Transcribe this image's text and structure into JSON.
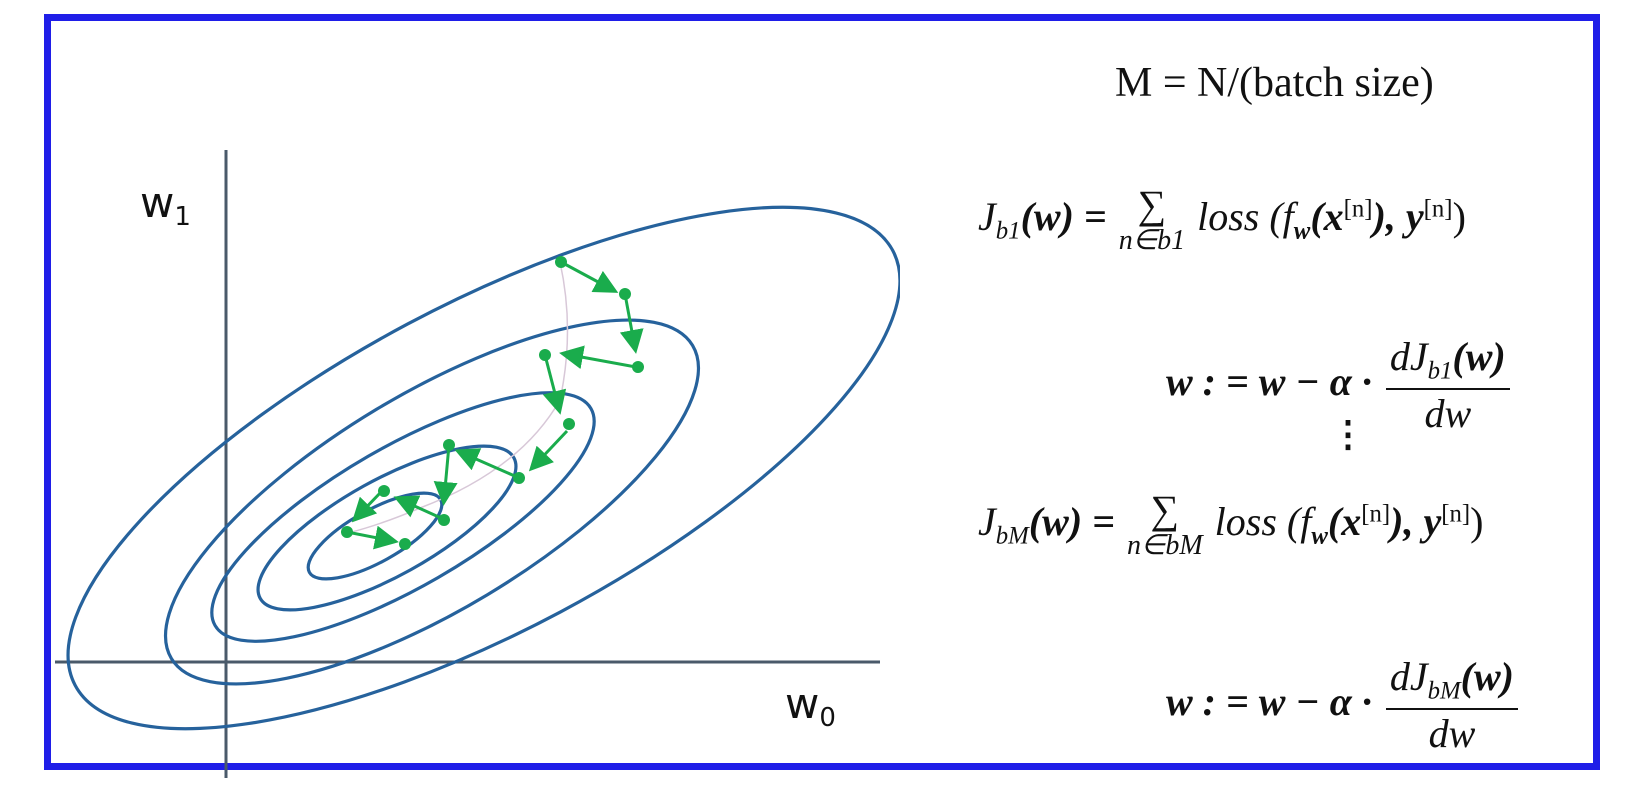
{
  "diagram": {
    "axis_x_label": "w",
    "axis_x_sub": "0",
    "axis_y_label": "w",
    "axis_y_sub": "1"
  },
  "equations": {
    "batches_count": "M = N/(batch size)",
    "batch1": {
      "lhs_J": "J",
      "lhs_sub": "b1",
      "lhs_arg": "(w) =",
      "sum_symbol": "∑",
      "sum_limit": "n∈b1",
      "rhs": "loss (f",
      "rhs_fsub": "w",
      "rhs_x": "(x",
      "rhs_xsup": "[n]",
      "rhs_y": "), y",
      "rhs_ysup": "[n]",
      "rhs_close": ")"
    },
    "update1": {
      "lhs": "w : = w − α ·",
      "num": "dJ",
      "num_sub": "b1",
      "num_arg": "(w)",
      "den": "dw"
    },
    "ellipsis": "⋮",
    "batchM": {
      "lhs_J": "J",
      "lhs_sub": "bM",
      "lhs_arg": "(w) =",
      "sum_symbol": "∑",
      "sum_limit": "n∈bM",
      "rhs": "loss (f",
      "rhs_fsub": "w",
      "rhs_x": "(x",
      "rhs_xsup": "[n]",
      "rhs_y": "), y",
      "rhs_ysup": "[n]",
      "rhs_close": ")"
    },
    "updateM": {
      "lhs": "w : = w − α ·",
      "num": "dJ",
      "num_sub": "bM",
      "num_arg": "(w)",
      "den": "dw"
    }
  },
  "colors": {
    "frame": "#1f1ee8",
    "contour": "#26629c",
    "path": "#1aac4c",
    "axes": "#4a5a6a"
  }
}
